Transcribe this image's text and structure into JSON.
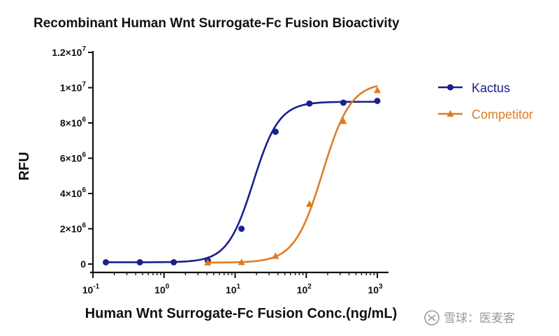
{
  "chart_data": {
    "type": "line",
    "title": "Recombinant Human Wnt Surrogate-Fc Fusion Bioactivity",
    "xlabel": "Human Wnt Surrogate-Fc Fusion Conc.(ng/mL)",
    "ylabel": "RFU",
    "x_scale": "log",
    "xlim": [
      0.1,
      1000
    ],
    "ylim": [
      0,
      12000000
    ],
    "x_ticks": [
      {
        "base": "10",
        "exp": "-1",
        "value": 0.1
      },
      {
        "base": "10",
        "exp": "0",
        "value": 1
      },
      {
        "base": "10",
        "exp": "1",
        "value": 10
      },
      {
        "base": "10",
        "exp": "2",
        "value": 100
      },
      {
        "base": "10",
        "exp": "3",
        "value": 1000
      }
    ],
    "y_ticks": [
      {
        "label": "0",
        "exp": "",
        "value": 0
      },
      {
        "label": "2×10",
        "exp": "6",
        "value": 2000000
      },
      {
        "label": "4×10",
        "exp": "6",
        "value": 4000000
      },
      {
        "label": "6×10",
        "exp": "6",
        "value": 6000000
      },
      {
        "label": "8×10",
        "exp": "6",
        "value": 8000000
      },
      {
        "label": "1×10",
        "exp": "7",
        "value": 10000000
      },
      {
        "label": "1.2×10",
        "exp": "7",
        "value": 12000000
      }
    ],
    "legend_position": "right",
    "grid": false,
    "series": [
      {
        "name": "Kactus",
        "color": "#1a1f8c",
        "marker": "circle",
        "x": [
          0.152,
          0.457,
          1.37,
          4.12,
          12.3,
          37.0,
          111,
          333,
          1000
        ],
        "y": [
          100000,
          100000,
          100000,
          200000,
          2000000,
          7500000,
          9100000,
          9150000,
          9250000
        ],
        "fit": {
          "bottom": 100000,
          "top": 9200000,
          "ec50": 18,
          "hill": 2.4
        }
      },
      {
        "name": "Competitor",
        "color": "#e07b22",
        "marker": "triangle",
        "x": [
          4.12,
          12.3,
          37.0,
          111,
          333,
          1000
        ],
        "y": [
          80000,
          100000,
          450000,
          3400000,
          8100000,
          9850000
        ],
        "fit": {
          "bottom": 80000,
          "top": 10300000,
          "ec50": 170,
          "hill": 2.2
        }
      }
    ]
  },
  "watermark": {
    "text": "雪球：医麦客"
  }
}
